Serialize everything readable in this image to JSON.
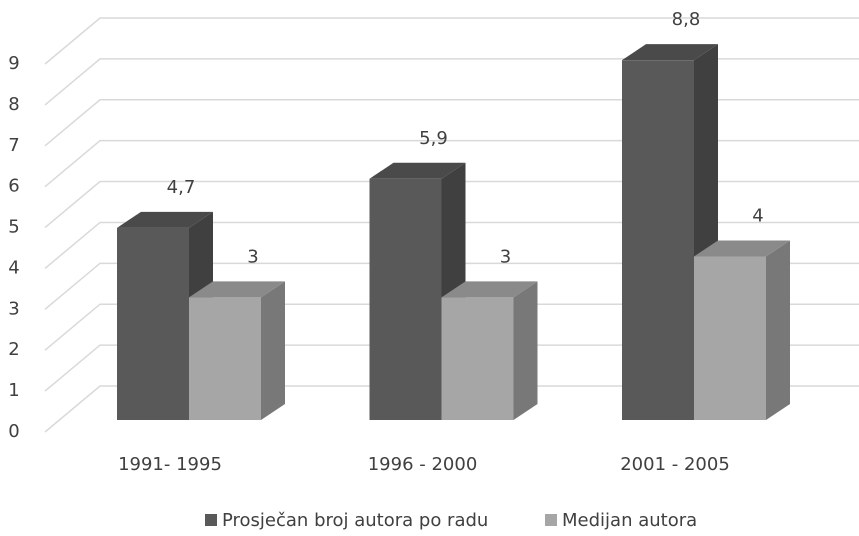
{
  "chart_data": {
    "type": "bar3d",
    "categories": [
      "1991- 1995",
      "1996 - 2000",
      "2001 - 2005"
    ],
    "series": [
      {
        "name": "Prosječan broj autora po radu",
        "color": "#595959",
        "values": [
          4.7,
          5.9,
          8.8
        ],
        "value_labels": [
          "4,7",
          "5,9",
          "8,8"
        ]
      },
      {
        "name": "Medijan autora",
        "color": "#a6a6a6",
        "values": [
          3,
          3,
          4
        ]
      }
    ],
    "ylim": [
      0,
      9
    ],
    "yticks": [
      0,
      1,
      2,
      3,
      4,
      5,
      6,
      7,
      8,
      9
    ],
    "grid": true,
    "legend": "bottom"
  }
}
